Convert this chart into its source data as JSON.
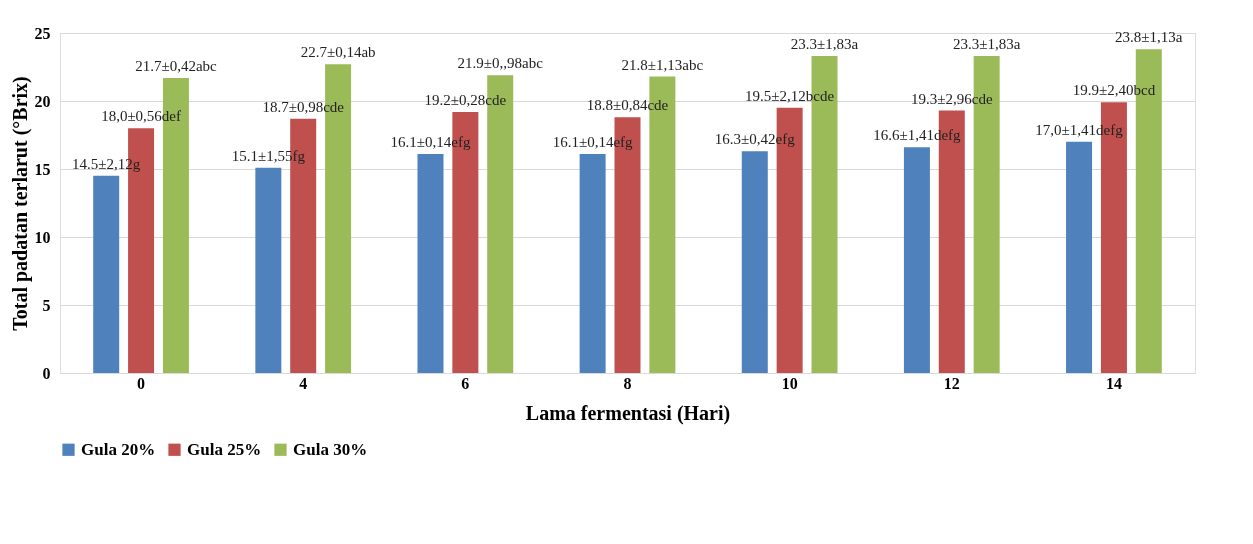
{
  "chart_data": {
    "type": "bar",
    "xlabel": "Lama fermentasi (Hari)",
    "ylabel": "Total padatan terlarut (°Brix)",
    "categories": [
      "0",
      "4",
      "6",
      "8",
      "10",
      "12",
      "14"
    ],
    "series": [
      {
        "name": "Gula 20%",
        "color": "#4f81bd",
        "values": [
          14.5,
          15.1,
          16.1,
          16.1,
          16.3,
          16.6,
          17.0
        ],
        "value_labels": [
          "14.5±2,12g",
          "15.1±1,55fg",
          "16.1±0,14efg",
          "16.1±0,14efg",
          "16.3±0,42efg",
          "16.6±1,41defg",
          "17,0±1,41defg"
        ]
      },
      {
        "name": "Gula 25%",
        "color": "#c0504d",
        "values": [
          18.0,
          18.7,
          19.2,
          18.8,
          19.5,
          19.3,
          19.9
        ],
        "value_labels": [
          "18,0±0,56def",
          "18.7±0,98cde",
          "19.2±0,28cde",
          "18.8±0,84cde",
          "19.5±2,12bcde",
          "19.3±2,96cde",
          "19.9±2,40bcd"
        ]
      },
      {
        "name": "Gula 30%",
        "color": "#9bbb59",
        "values": [
          21.7,
          22.7,
          21.9,
          21.8,
          23.3,
          23.3,
          23.8
        ],
        "value_labels": [
          "21.7±0,42abc",
          "22.7±0,14ab",
          "21.9±0,,98abc",
          "21.8±1,13abc",
          "23.3±1,83a",
          "23.3±1,83a",
          "23.8±1,13a"
        ]
      }
    ],
    "ylim": [
      0,
      25
    ],
    "yticks": [
      0,
      5,
      10,
      15,
      20,
      25
    ],
    "grid": "y",
    "legend": "bottom"
  }
}
